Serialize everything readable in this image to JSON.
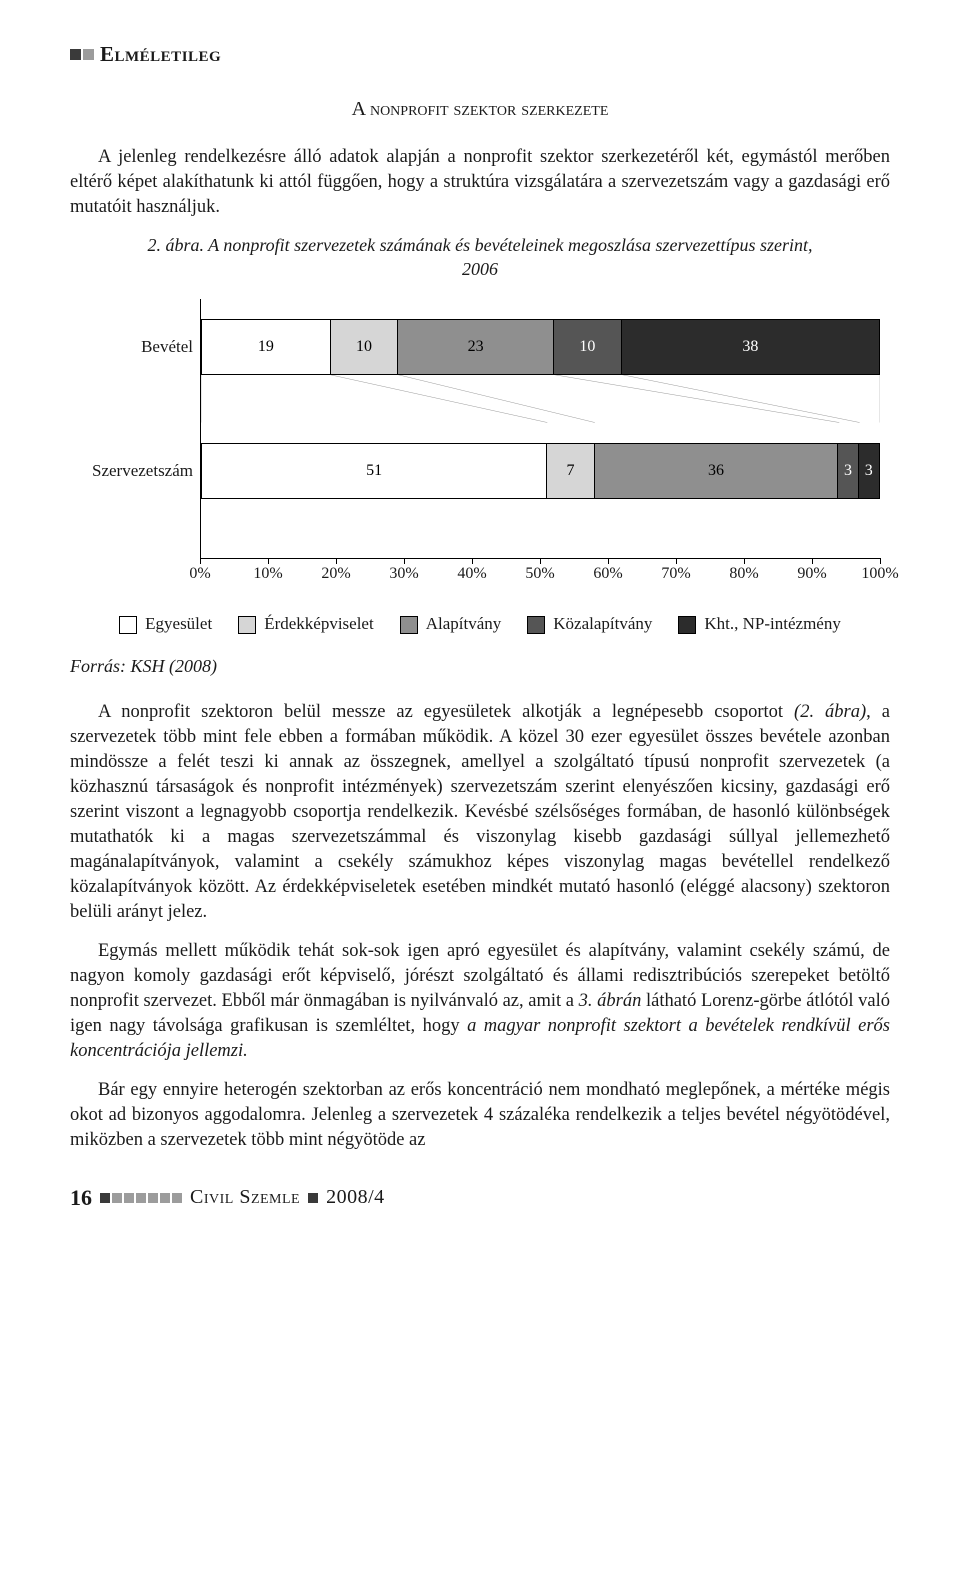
{
  "header": {
    "title": "Elméletileg",
    "square_colors": [
      "#3a3a3a",
      "#9c9c9c"
    ]
  },
  "subtitle": "A nonprofit szektor szerkezete",
  "intro": "A jelenleg rendelkezésre álló adatok alapján a nonprofit szektor szerkezetéről két, egymástól merőben eltérő képet alakíthatunk ki attól függően, hogy a struktúra vizsgálatára a szervezetszám vagy a gazdasági erő mutatóit használjuk.",
  "figure": {
    "caption_line1": "2. ábra. A nonprofit szervezetek számának és bevételeinek megoszlása szervezettípus szerint,",
    "caption_line2": "2006",
    "type": "stacked-bar-horizontal",
    "xlim": [
      0,
      100
    ],
    "xtick_step": 10,
    "xtick_labels": [
      "0%",
      "10%",
      "20%",
      "30%",
      "40%",
      "50%",
      "60%",
      "70%",
      "80%",
      "90%",
      "100%"
    ],
    "label_fontsize": 17,
    "categories": [
      {
        "name": "Bevétel",
        "values": [
          19,
          10,
          23,
          10,
          38
        ]
      },
      {
        "name": "Szervezetszám",
        "values": [
          51,
          7,
          36,
          3,
          3
        ]
      }
    ],
    "series": [
      {
        "label": "Egyesület",
        "color": "#ffffff",
        "text_color": "#000000"
      },
      {
        "label": "Érdekképviselet",
        "color": "#d6d6d6",
        "text_color": "#000000"
      },
      {
        "label": "Alapítvány",
        "color": "#8f8f8f",
        "text_color": "#000000"
      },
      {
        "label": "Közalapítvány",
        "color": "#555555",
        "text_color": "#ffffff"
      },
      {
        "label": "Kht., NP-intézmény",
        "color": "#2c2c2c",
        "text_color": "#ffffff"
      }
    ],
    "background_color": "#ffffff",
    "axis_color": "#000000",
    "border_color": "#000000"
  },
  "source": "Forrás: KSH (2008)",
  "body_p1a": "A nonprofit szektoron belül messze az egyesületek alkotják a legnépesebb csoportot ",
  "body_p1b": "(2. ábra)",
  "body_p1c": ", a szervezetek több mint fele ebben a formában működik. A közel 30 ezer egyesület összes bevétele azonban mindössze a felét teszi ki annak az összegnek, amellyel a szolgáltató típusú nonprofit szervezetek (a közhasznú társaságok és nonprofit intézmények) szervezetszám szerint elenyészően kicsiny, gazdasági erő szerint viszont a legnagyobb csoportja rendelkezik. Kevésbé szélsőséges formában, de hasonló különbségek mutathatók ki a magas szervezetszámmal és viszonylag kisebb gazdasági súllyal jellemezhető magánalapítványok, valamint a csekély számukhoz képes viszonylag magas bevétellel rendelkező közalapítványok között. Az érdekképviseletek esetében mindkét mutató hasonló (eléggé alacsony) szektoron belüli arányt jelez.",
  "body_p2a": "Egymás mellett működik tehát sok-sok igen apró egyesület és alapítvány, valamint csekély számú, de nagyon komoly gazdasági erőt képviselő, jórészt szolgáltató és állami redisztribúciós szerepeket betöltő nonprofit szervezet. Ebből már önmagában is nyilvánvaló az, amit a ",
  "body_p2b": "3. ábrán",
  "body_p2c": " látható Lorenz-görbe átlótól való igen nagy távolsága grafikusan is szemléltet, hogy ",
  "body_p2d": "a magyar nonprofit szektort a bevételek rendkívül erős koncentrációja jellemzi.",
  "body_p3": "Bár egy ennyire heterogén szektorban az erős koncentráció nem mondható meglepőnek, a mértéke mégis okot ad bizonyos aggodalomra. Jelenleg a szervezetek 4 százaléka rendelkezik a teljes bevétel négyötödével, miközben a szervezetek több mint négyötöde az",
  "footer": {
    "page": "16",
    "squares": [
      "#3a3a3a",
      "#9c9c9c",
      "#9c9c9c",
      "#9c9c9c",
      "#9c9c9c",
      "#9c9c9c",
      "#9c9c9c"
    ],
    "journal": "Civil Szemle",
    "issue": "2008/4",
    "sep_square": "#3a3a3a"
  }
}
